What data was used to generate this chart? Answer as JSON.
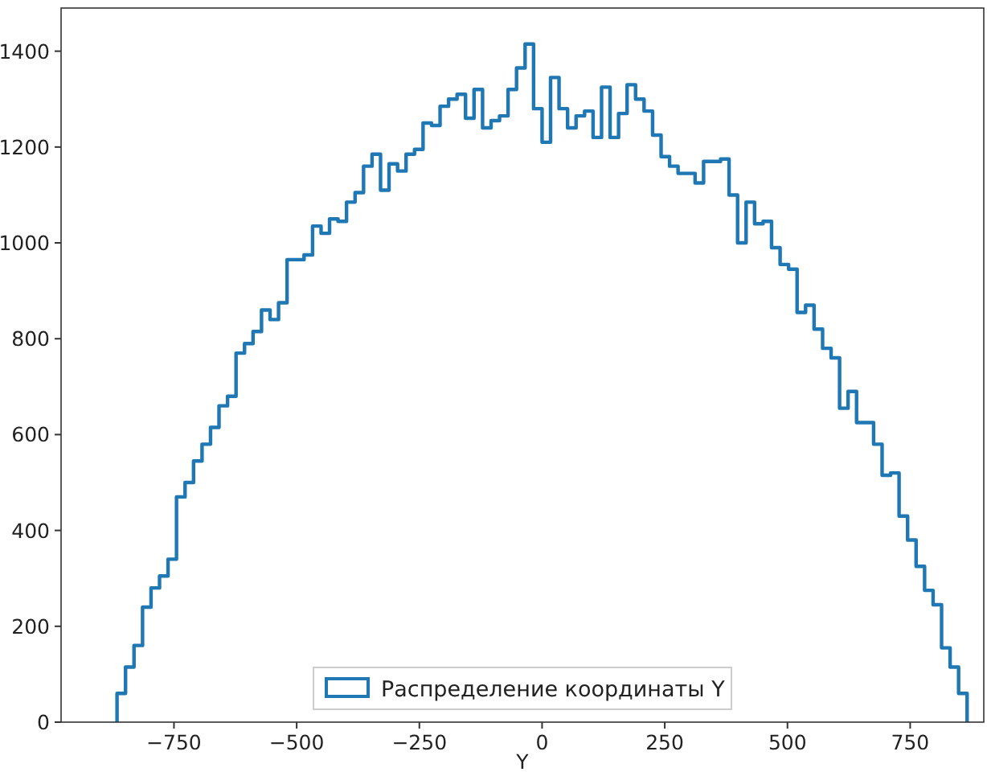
{
  "chart_data": {
    "type": "histogram",
    "xlabel": "Y",
    "bins": [
      -866,
      -848.7,
      -831.4,
      -814.0,
      -796.7,
      -779.4,
      -762.1,
      -744.8,
      -727.4,
      -710.1,
      -692.8,
      -675.5,
      -658.2,
      -640.8,
      -623.5,
      -606.2,
      -588.9,
      -571.6,
      -554.2,
      -536.9,
      -519.6,
      -502.3,
      -485.0,
      -467.6,
      -450.3,
      -433.0,
      -415.7,
      -398.4,
      -381.0,
      -363.7,
      -346.4,
      -329.1,
      -311.8,
      -294.4,
      -277.1,
      -259.8,
      -242.5,
      -225.2,
      -207.8,
      -190.5,
      -173.2,
      -155.9,
      -138.6,
      -121.2,
      -103.9,
      -86.6,
      -69.3,
      -52.0,
      -34.6,
      -17.3,
      0,
      17.3,
      34.6,
      52.0,
      69.3,
      86.6,
      103.9,
      121.2,
      138.6,
      155.9,
      173.2,
      190.5,
      207.8,
      225.2,
      242.5,
      259.8,
      277.1,
      294.4,
      311.8,
      329.1,
      346.4,
      363.7,
      381.0,
      398.4,
      415.7,
      433.0,
      450.3,
      467.6,
      485.0,
      502.3,
      519.6,
      536.9,
      554.2,
      571.6,
      588.9,
      606.2,
      623.5,
      640.8,
      658.2,
      675.5,
      692.8,
      710.1,
      727.4,
      744.8,
      762.1,
      779.4,
      796.7,
      814.0,
      831.4,
      848.7,
      866
    ],
    "series": [
      {
        "name": "Распределение координаты Y",
        "color": "#1f77b4",
        "values": [
          60,
          115,
          160,
          240,
          280,
          305,
          340,
          470,
          500,
          545,
          580,
          615,
          660,
          680,
          770,
          790,
          815,
          860,
          840,
          875,
          965,
          965,
          975,
          1035,
          1020,
          1050,
          1045,
          1085,
          1105,
          1160,
          1185,
          1110,
          1165,
          1150,
          1185,
          1195,
          1250,
          1245,
          1285,
          1300,
          1310,
          1260,
          1320,
          1240,
          1255,
          1265,
          1320,
          1365,
          1415,
          1280,
          1210,
          1345,
          1280,
          1240,
          1265,
          1275,
          1220,
          1325,
          1220,
          1270,
          1330,
          1300,
          1275,
          1225,
          1180,
          1160,
          1145,
          1145,
          1125,
          1170,
          1170,
          1175,
          1100,
          1000,
          1085,
          1040,
          1045,
          990,
          955,
          945,
          855,
          870,
          820,
          780,
          760,
          655,
          690,
          625,
          625,
          580,
          515,
          520,
          430,
          380,
          325,
          275,
          245,
          155,
          115,
          60
        ]
      }
    ],
    "xlim": [
      -980,
      900
    ],
    "xticks": [
      -750,
      -500,
      -250,
      0,
      250,
      500,
      750
    ],
    "ylim": [
      0,
      1490
    ],
    "yticks": [
      0,
      200,
      400,
      600,
      800,
      1000,
      1200,
      1400
    ],
    "grid": false,
    "legend": "bottom"
  }
}
